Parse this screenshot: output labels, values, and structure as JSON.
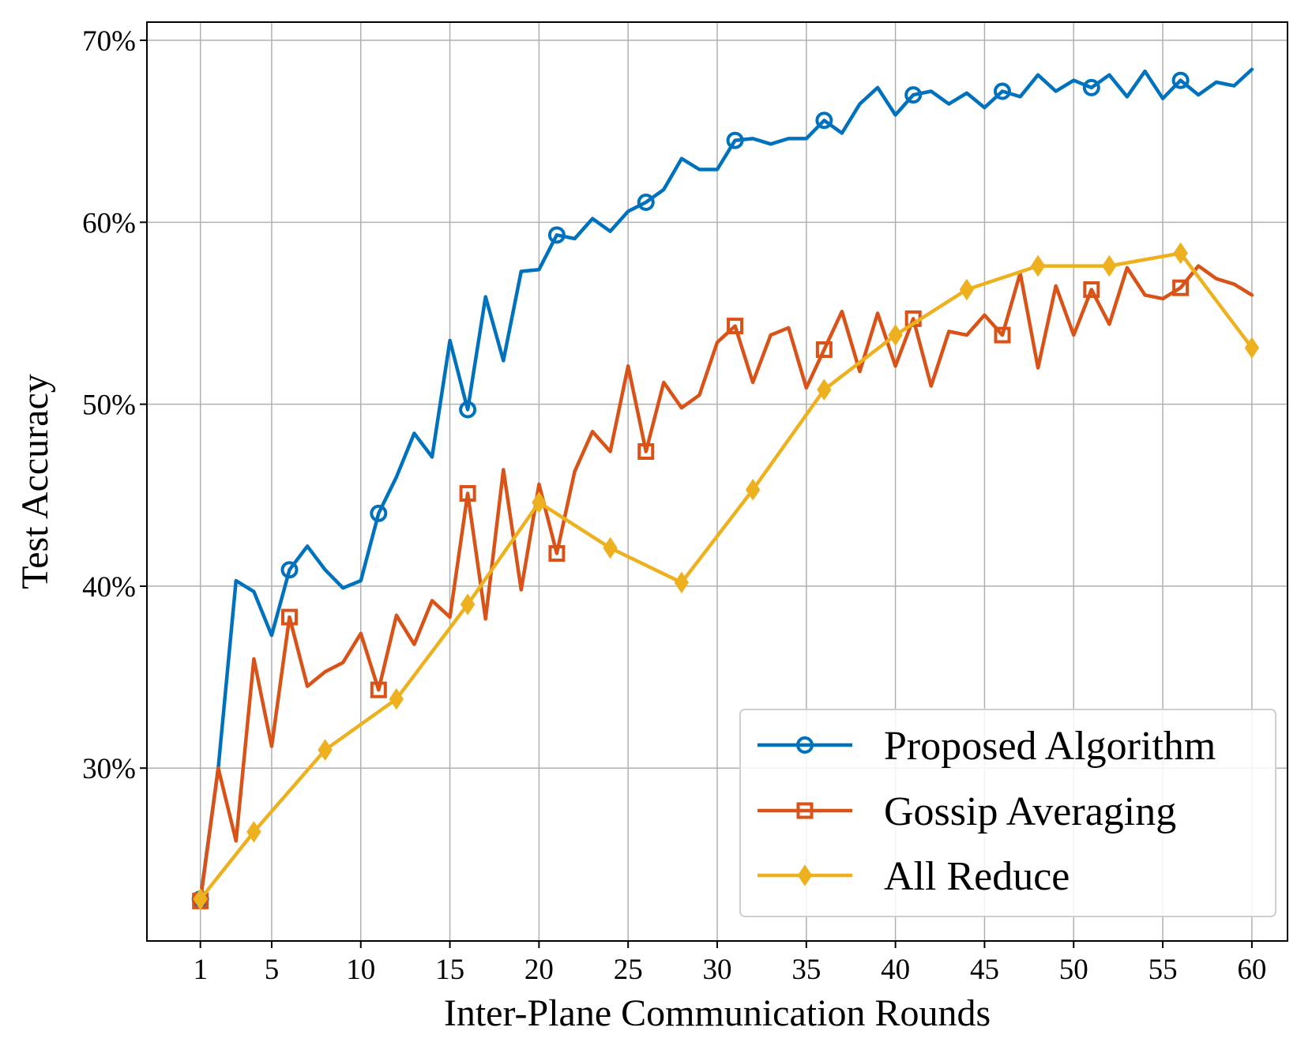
{
  "chart_data": {
    "type": "line",
    "title": "",
    "xlabel": "Inter-Plane Communication Rounds",
    "ylabel": "Test Accuracy",
    "xlim": [
      -2,
      62
    ],
    "ylim": [
      20.5,
      71
    ],
    "xticks": [
      1,
      5,
      10,
      15,
      20,
      25,
      30,
      35,
      40,
      45,
      50,
      55,
      60
    ],
    "xtick_labels": [
      "1",
      "5",
      "10",
      "15",
      "20",
      "25",
      "30",
      "35",
      "40",
      "45",
      "50",
      "55",
      "60"
    ],
    "yticks": [
      30,
      40,
      50,
      60,
      70
    ],
    "ytick_labels": [
      "30%",
      "40%",
      "50%",
      "60%",
      "70%"
    ],
    "grid": true,
    "legend_position": "lower-right",
    "series": [
      {
        "name": "Proposed Algorithm",
        "color": "#0072BD",
        "marker": "circle",
        "marker_x": [
          1,
          6,
          11,
          16,
          21,
          26,
          31,
          36,
          41,
          46,
          51,
          56
        ],
        "x": [
          1,
          2,
          3,
          4,
          5,
          6,
          7,
          8,
          9,
          10,
          11,
          12,
          13,
          14,
          15,
          16,
          17,
          18,
          19,
          20,
          21,
          22,
          23,
          24,
          25,
          26,
          27,
          28,
          29,
          30,
          31,
          32,
          33,
          34,
          35,
          36,
          37,
          38,
          39,
          40,
          41,
          42,
          43,
          44,
          45,
          46,
          47,
          48,
          49,
          50,
          51,
          52,
          53,
          54,
          55,
          56,
          57,
          58,
          59,
          60
        ],
        "y": [
          22.8,
          30,
          40.3,
          39.7,
          37.3,
          40.9,
          42.2,
          40.9,
          39.9,
          40.3,
          44.0,
          46.0,
          48.4,
          47.1,
          53.5,
          49.7,
          55.9,
          52.4,
          57.3,
          57.4,
          59.3,
          59.1,
          60.2,
          59.5,
          60.6,
          61.1,
          61.8,
          63.5,
          62.9,
          62.9,
          64.5,
          64.6,
          64.3,
          64.6,
          64.6,
          65.6,
          64.9,
          66.5,
          67.4,
          65.9,
          67.0,
          67.2,
          66.5,
          67.1,
          66.3,
          67.2,
          66.9,
          68.1,
          67.2,
          67.8,
          67.4,
          68.1,
          66.9,
          68.3,
          66.8,
          67.8,
          67.0,
          67.7,
          67.5,
          68.4
        ]
      },
      {
        "name": "Gossip Averaging",
        "color": "#D95319",
        "marker": "square",
        "marker_x": [
          1,
          6,
          11,
          16,
          21,
          26,
          31,
          36,
          41,
          46,
          51,
          56
        ],
        "x": [
          1,
          2,
          3,
          4,
          5,
          6,
          7,
          8,
          9,
          10,
          11,
          12,
          13,
          14,
          15,
          16,
          17,
          18,
          19,
          20,
          21,
          22,
          23,
          24,
          25,
          26,
          27,
          28,
          29,
          30,
          31,
          32,
          33,
          34,
          35,
          36,
          37,
          38,
          39,
          40,
          41,
          42,
          43,
          44,
          45,
          46,
          47,
          48,
          49,
          50,
          51,
          52,
          53,
          54,
          55,
          56,
          57,
          58,
          59,
          60
        ],
        "y": [
          22.7,
          30.0,
          26.0,
          36.0,
          31.2,
          38.3,
          34.5,
          35.3,
          35.8,
          37.4,
          34.3,
          38.4,
          36.8,
          39.2,
          38.3,
          45.1,
          38.2,
          46.4,
          39.8,
          45.6,
          41.8,
          46.3,
          48.5,
          47.4,
          52.1,
          47.4,
          51.2,
          49.8,
          50.5,
          53.4,
          54.3,
          51.2,
          53.8,
          54.2,
          50.9,
          53.0,
          55.1,
          51.8,
          55.0,
          52.1,
          54.7,
          51.0,
          54.0,
          53.8,
          54.9,
          53.8,
          57.2,
          52.0,
          56.5,
          53.8,
          56.3,
          54.4,
          57.5,
          56.0,
          55.8,
          56.4,
          57.6,
          56.9,
          56.6,
          56.0
        ]
      },
      {
        "name": "All Reduce",
        "color": "#EDB120",
        "marker": "diamond",
        "marker_x": [
          1,
          4,
          8,
          12,
          16,
          20,
          24,
          28,
          32,
          36,
          40,
          44,
          48,
          52,
          56,
          60
        ],
        "x": [
          1,
          4,
          8,
          12,
          16,
          20,
          24,
          28,
          32,
          36,
          40,
          44,
          48,
          52,
          56,
          60
        ],
        "y": [
          22.8,
          26.5,
          31.0,
          33.8,
          39.0,
          44.6,
          42.1,
          40.2,
          45.3,
          50.8,
          53.8,
          56.3,
          57.6,
          57.6,
          58.3,
          53.1
        ]
      }
    ]
  }
}
